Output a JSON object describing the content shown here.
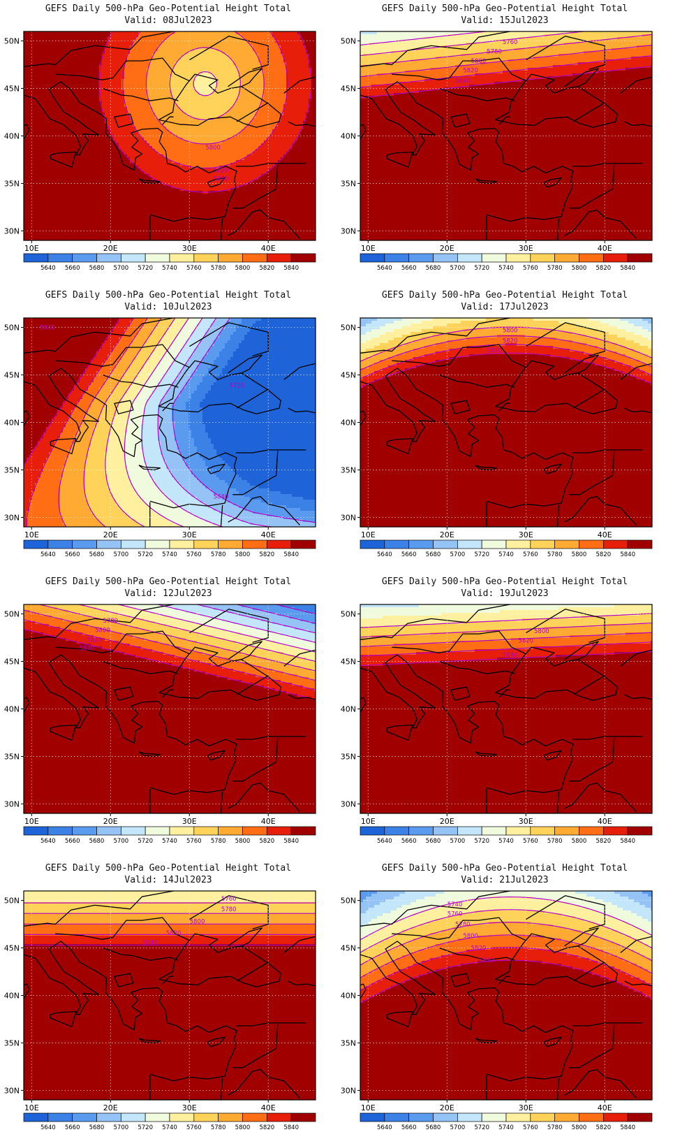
{
  "figure": {
    "title_line1": "GEFS Daily 500-hPa Geo-Potential Height Total",
    "valid_prefix": "Valid:"
  },
  "colorbar": {
    "levels": [
      5640,
      5660,
      5680,
      5700,
      5720,
      5740,
      5760,
      5780,
      5800,
      5820,
      5840
    ],
    "colors": [
      "#1e64d8",
      "#3c82e6",
      "#5a9bf0",
      "#96c3f5",
      "#c3e6fa",
      "#f0fadc",
      "#fff0a0",
      "#ffd25a",
      "#ffaa32",
      "#ff6e14",
      "#e61e0a",
      "#a00000"
    ]
  },
  "axes": {
    "lon_ticks": [
      "10E",
      "20E",
      "30E",
      "40E"
    ],
    "lat_ticks": [
      "50N",
      "45N",
      "40N",
      "35N",
      "30N"
    ],
    "lon_range": [
      9,
      46
    ],
    "lat_range": [
      29,
      51
    ],
    "grid": true,
    "contour_color": "#b400c8"
  },
  "chart_data": [
    {
      "type": "heatmap",
      "valid": "08Jul2023",
      "pattern": "cutoff-low",
      "center": [
        32,
        46
      ],
      "contours": [
        5760,
        5780,
        5800,
        5820,
        5840
      ],
      "labels": [
        {
          "text": "5800",
          "lon": 33,
          "lat": 38.8
        },
        {
          "text": "5820",
          "lon": 34,
          "lat": 36.4
        },
        {
          "text": "5840",
          "lon": 34,
          "lat": 35.5
        }
      ]
    },
    {
      "type": "heatmap",
      "valid": "15Jul2023",
      "pattern": "zonal",
      "contours": [
        5740,
        5760,
        5780,
        5800,
        5820,
        5840
      ],
      "labels": [
        {
          "text": "5760",
          "lon": 28,
          "lat": 49.9
        },
        {
          "text": "5780",
          "lon": 26,
          "lat": 48.9
        },
        {
          "text": "5800",
          "lon": 24,
          "lat": 47.9
        },
        {
          "text": "5820",
          "lon": 23,
          "lat": 46.9
        },
        {
          "text": "5840",
          "lon": 22,
          "lat": 45.8
        }
      ]
    },
    {
      "type": "heatmap",
      "valid": "10Jul2023",
      "pattern": "trough",
      "contours": [
        5680,
        5700,
        5720,
        5740,
        5760,
        5780,
        5800,
        5820,
        5840
      ],
      "labels": [
        {
          "text": "5720",
          "lon": 36,
          "lat": 43.9
        },
        {
          "text": "5840",
          "lon": 12,
          "lat": 50.0
        },
        {
          "text": "5840",
          "lon": 34,
          "lat": 32.2
        }
      ]
    },
    {
      "type": "heatmap",
      "valid": "17Jul2023",
      "pattern": "zonal",
      "contours": [
        5780,
        5800,
        5820,
        5840
      ],
      "labels": [
        {
          "text": "5800",
          "lon": 28,
          "lat": 49.7
        },
        {
          "text": "5820",
          "lon": 28,
          "lat": 48.6
        },
        {
          "text": "5840",
          "lon": 26,
          "lat": 47.6
        }
      ]
    },
    {
      "type": "heatmap",
      "valid": "12Jul2023",
      "pattern": "trough-north",
      "contours": [
        5660,
        5680,
        5700,
        5720,
        5740,
        5760,
        5780,
        5800,
        5820,
        5840
      ],
      "labels": [
        {
          "text": "5780",
          "lon": 20,
          "lat": 49.3
        },
        {
          "text": "5800",
          "lon": 19,
          "lat": 48.3
        },
        {
          "text": "5820",
          "lon": 18,
          "lat": 47.3
        },
        {
          "text": "5840",
          "lon": 17,
          "lat": 46.4
        }
      ]
    },
    {
      "type": "heatmap",
      "valid": "19Jul2023",
      "pattern": "zonal",
      "contours": [
        5760,
        5780,
        5800,
        5820,
        5840
      ],
      "labels": [
        {
          "text": "5800",
          "lon": 32,
          "lat": 48.2
        },
        {
          "text": "5820",
          "lon": 30,
          "lat": 47.2
        },
        {
          "text": "5840",
          "lon": 28,
          "lat": 45.7
        }
      ]
    },
    {
      "type": "heatmap",
      "valid": "14Jul2023",
      "pattern": "zonal",
      "contours": [
        5760,
        5780,
        5800,
        5820,
        5840
      ],
      "labels": [
        {
          "text": "5760",
          "lon": 35,
          "lat": 50.2
        },
        {
          "text": "5780",
          "lon": 35,
          "lat": 49.1
        },
        {
          "text": "5800",
          "lon": 31,
          "lat": 47.8
        },
        {
          "text": "5820",
          "lon": 28,
          "lat": 46.6
        },
        {
          "text": "5840",
          "lon": 25,
          "lat": 45.6
        }
      ]
    },
    {
      "type": "heatmap",
      "valid": "21Jul2023",
      "pattern": "zonal",
      "contours": [
        5740,
        5760,
        5780,
        5800,
        5820,
        5840
      ],
      "labels": [
        {
          "text": "5740",
          "lon": 21,
          "lat": 49.6
        },
        {
          "text": "5760",
          "lon": 21,
          "lat": 48.6
        },
        {
          "text": "5780",
          "lon": 22,
          "lat": 47.5
        },
        {
          "text": "5800",
          "lon": 23,
          "lat": 46.3
        },
        {
          "text": "5820",
          "lon": 24,
          "lat": 45.0
        },
        {
          "text": "5840",
          "lon": 25,
          "lat": 43.7
        }
      ]
    }
  ]
}
